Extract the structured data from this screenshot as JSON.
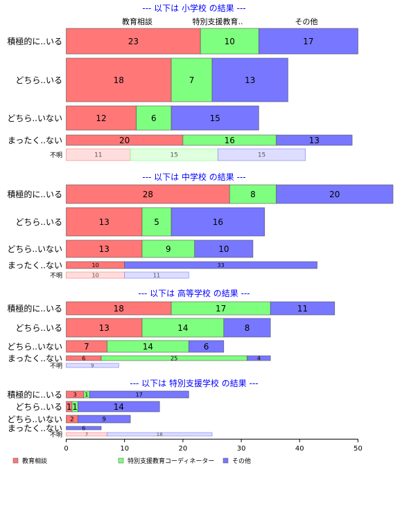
{
  "chart_data": {
    "type": "bar",
    "orientation": "horizontal",
    "stacked": true,
    "xlim": [
      0,
      50
    ],
    "x_ticks": [
      0,
      10,
      20,
      30,
      40,
      50
    ],
    "colors": {
      "教育相談": "#ff7777",
      "特別支援教育コーディネーター": "#7fff7f",
      "その他": "#7777ff"
    },
    "top_legend": [
      "教育相談",
      "特別支援教育..",
      "その他"
    ],
    "legend": [
      "教育相談",
      "特別支援教育コーディネーター",
      "その他"
    ],
    "legend_position": "bottom",
    "groups": [
      {
        "title": "--- 以下は 小学校 の結果 ---",
        "rows": [
          {
            "label": "積極的に..いる",
            "values": [
              23,
              10,
              17
            ]
          },
          {
            "label": "どちら..いる",
            "values": [
              18,
              7,
              13
            ]
          },
          {
            "label": "どちら..いない",
            "values": [
              12,
              6,
              15
            ]
          },
          {
            "label": "まったく..ない",
            "values": [
              20,
              16,
              13
            ]
          },
          {
            "label": "不明",
            "values": [
              11,
              15,
              15
            ]
          }
        ]
      },
      {
        "title": "--- 以下は 中学校 の結果 ---",
        "rows": [
          {
            "label": "積極的に..いる",
            "values": [
              28,
              8,
              20
            ]
          },
          {
            "label": "どちら..いる",
            "values": [
              13,
              5,
              16
            ]
          },
          {
            "label": "どちら..いない",
            "values": [
              13,
              9,
              10
            ]
          },
          {
            "label": "まったく..ない",
            "values": [
              10,
              0,
              33
            ]
          },
          {
            "label": "不明",
            "values": [
              10,
              0,
              11
            ]
          }
        ]
      },
      {
        "title": "--- 以下は 高等学校 の結果 ---",
        "rows": [
          {
            "label": "積極的に..いる",
            "values": [
              18,
              17,
              11
            ]
          },
          {
            "label": "どちら..いる",
            "values": [
              13,
              14,
              8
            ]
          },
          {
            "label": "どちら..いない",
            "values": [
              7,
              14,
              6
            ]
          },
          {
            "label": "まったく..ない",
            "values": [
              6,
              25,
              4
            ]
          },
          {
            "label": "不明",
            "values": [
              0,
              0,
              9
            ]
          }
        ]
      },
      {
        "title": "--- 以下は 特別支援学校 の結果 ---",
        "rows": [
          {
            "label": "積極的に..いる",
            "values": [
              3,
              1,
              17
            ]
          },
          {
            "label": "どちら..いる",
            "values": [
              1,
              1,
              14
            ]
          },
          {
            "label": "どちら..いない",
            "values": [
              2,
              0,
              9
            ]
          },
          {
            "label": "まったく..ない",
            "values": [
              0,
              0,
              6
            ]
          },
          {
            "label": "不明",
            "values": [
              7,
              0,
              18
            ]
          }
        ]
      }
    ]
  }
}
